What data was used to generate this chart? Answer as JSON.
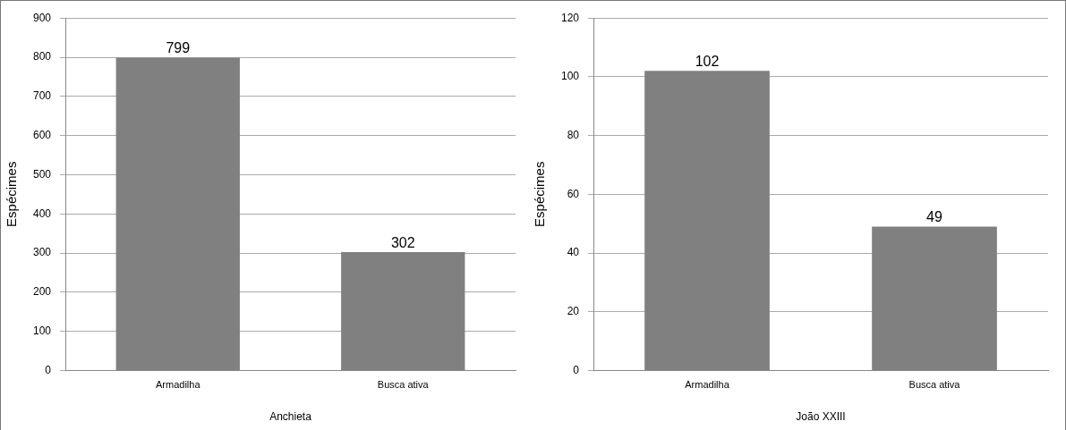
{
  "chart_data": [
    {
      "type": "bar",
      "xlabel": "Anchieta",
      "ylabel": "Espécimes",
      "categories": [
        "Armadilha",
        "Busca ativa"
      ],
      "values": [
        799,
        302
      ],
      "color": "#808080",
      "ylim": [
        0,
        900
      ],
      "yticks": [
        0,
        100,
        200,
        300,
        400,
        500,
        600,
        700,
        800,
        900
      ],
      "grid": "y",
      "data_labels": true
    },
    {
      "type": "bar",
      "xlabel": "João XXIII",
      "ylabel": "Espécimes",
      "categories": [
        "Armadilha",
        "Busca ativa"
      ],
      "values": [
        102,
        49
      ],
      "color": "#808080",
      "ylim": [
        0,
        120
      ],
      "yticks": [
        0,
        20,
        40,
        60,
        80,
        100,
        120
      ],
      "grid": "y",
      "data_labels": true
    }
  ]
}
